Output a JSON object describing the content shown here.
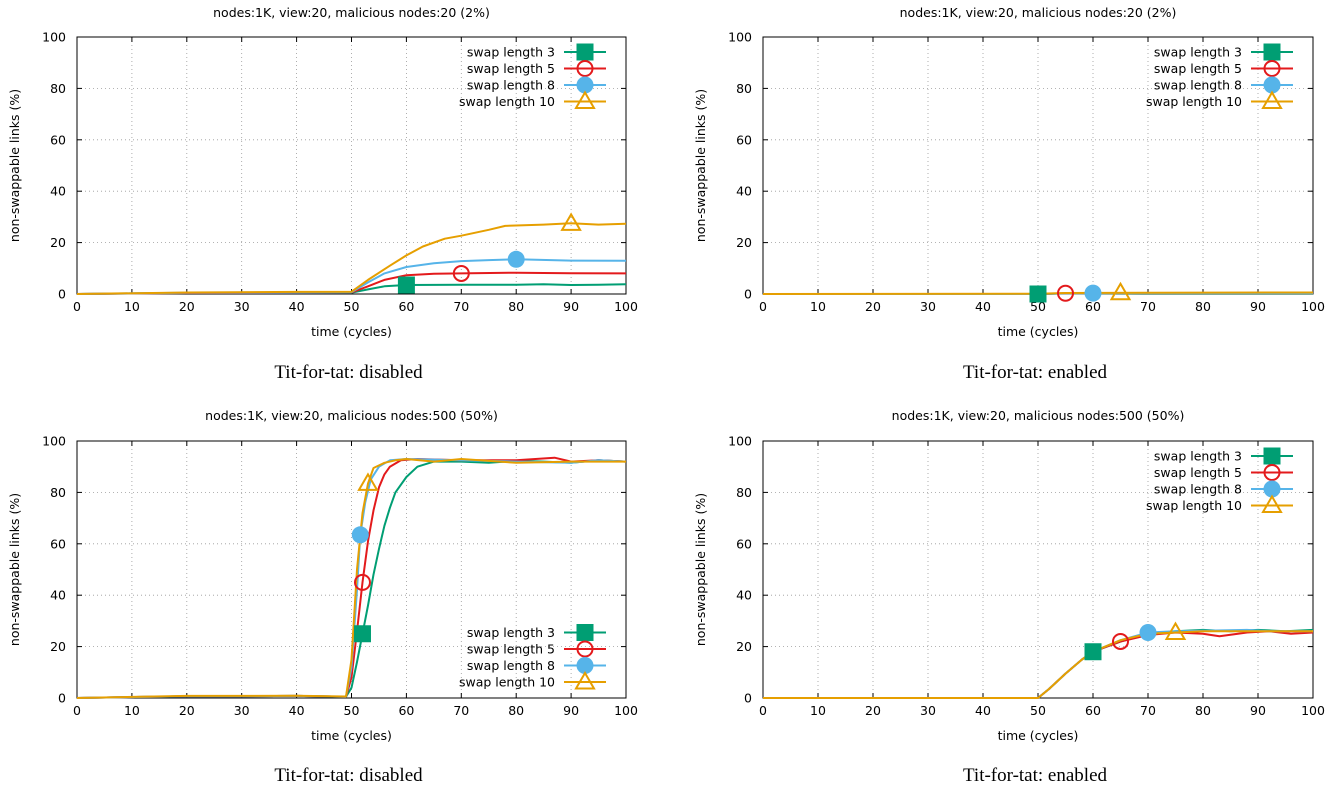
{
  "colors": {
    "swap3": "#009e73",
    "swap5": "#e31a1c",
    "swap8": "#56b4e9",
    "swap10": "#e69f00"
  },
  "chart_data": [
    {
      "type": "line",
      "title": "nodes:1K, view:20, malicious nodes:20 (2%)",
      "caption": "Tit-for-tat: disabled",
      "xlabel": "time (cycles)",
      "ylabel": "non-swappable links (%)",
      "xlim": [
        0,
        100
      ],
      "ylim": [
        0,
        100
      ],
      "xticks": [
        "0",
        "10",
        "20",
        "30",
        "40",
        "50",
        "60",
        "70",
        "80",
        "90",
        "100"
      ],
      "yticks": [
        "0",
        "20",
        "40",
        "60",
        "80",
        "100"
      ],
      "grid": true,
      "legend_position": "top-right",
      "series": [
        {
          "name": "swap length 3",
          "color_key": "swap3",
          "marker": "square",
          "marker_x": 60,
          "points": [
            [
              0,
              0
            ],
            [
              20,
              0.4
            ],
            [
              40,
              0.5
            ],
            [
              50,
              0.5
            ],
            [
              53,
              1.8
            ],
            [
              56,
              3.0
            ],
            [
              60,
              3.5
            ],
            [
              70,
              3.6
            ],
            [
              80,
              3.6
            ],
            [
              85,
              3.8
            ],
            [
              90,
              3.5
            ],
            [
              95,
              3.6
            ],
            [
              100,
              3.8
            ]
          ]
        },
        {
          "name": "swap length 5",
          "color_key": "swap5",
          "marker": "circle-open",
          "marker_x": 70,
          "points": [
            [
              0,
              0
            ],
            [
              20,
              0.4
            ],
            [
              40,
              0.5
            ],
            [
              50,
              0.6
            ],
            [
              53,
              3.0
            ],
            [
              56,
              5.5
            ],
            [
              60,
              7.3
            ],
            [
              65,
              7.9
            ],
            [
              70,
              8.0
            ],
            [
              80,
              8.3
            ],
            [
              90,
              8.1
            ],
            [
              100,
              8.0
            ]
          ]
        },
        {
          "name": "swap length 8",
          "color_key": "swap8",
          "marker": "circle-filled",
          "marker_x": 80,
          "points": [
            [
              0,
              0
            ],
            [
              20,
              0.5
            ],
            [
              40,
              0.6
            ],
            [
              50,
              0.7
            ],
            [
              53,
              4.5
            ],
            [
              56,
              8.0
            ],
            [
              60,
              10.5
            ],
            [
              65,
              12.0
            ],
            [
              70,
              12.8
            ],
            [
              75,
              13.2
            ],
            [
              80,
              13.5
            ],
            [
              90,
              13.0
            ],
            [
              100,
              12.9
            ]
          ]
        },
        {
          "name": "swap length 10",
          "color_key": "swap10",
          "marker": "triangle-open",
          "marker_x": 90,
          "points": [
            [
              0,
              0
            ],
            [
              20,
              0.6
            ],
            [
              40,
              0.8
            ],
            [
              50,
              0.9
            ],
            [
              53,
              5.5
            ],
            [
              57,
              11.0
            ],
            [
              60,
              15.0
            ],
            [
              63,
              18.5
            ],
            [
              67,
              21.5
            ],
            [
              70,
              22.7
            ],
            [
              75,
              25.0
            ],
            [
              78,
              26.5
            ],
            [
              85,
              27.0
            ],
            [
              90,
              27.5
            ],
            [
              95,
              27.0
            ],
            [
              100,
              27.3
            ]
          ]
        }
      ]
    },
    {
      "type": "line",
      "title": "nodes:1K, view:20, malicious nodes:20 (2%)",
      "caption": "Tit-for-tat: enabled",
      "xlabel": "time (cycles)",
      "ylabel": "non-swappable links (%)",
      "xlim": [
        0,
        100
      ],
      "ylim": [
        0,
        100
      ],
      "xticks": [
        "0",
        "10",
        "20",
        "30",
        "40",
        "50",
        "60",
        "70",
        "80",
        "90",
        "100"
      ],
      "yticks": [
        "0",
        "20",
        "40",
        "60",
        "80",
        "100"
      ],
      "grid": true,
      "legend_position": "top-right",
      "series": [
        {
          "name": "swap length 3",
          "color_key": "swap3",
          "marker": "square",
          "marker_x": 50,
          "points": [
            [
              0,
              0
            ],
            [
              50,
              0
            ],
            [
              55,
              0.2
            ],
            [
              70,
              0.3
            ],
            [
              100,
              0.3
            ]
          ]
        },
        {
          "name": "swap length 5",
          "color_key": "swap5",
          "marker": "circle-open",
          "marker_x": 55,
          "points": [
            [
              0,
              0
            ],
            [
              50,
              0
            ],
            [
              55,
              0.3
            ],
            [
              70,
              0.4
            ],
            [
              100,
              0.4
            ]
          ]
        },
        {
          "name": "swap length 8",
          "color_key": "swap8",
          "marker": "circle-filled",
          "marker_x": 60,
          "points": [
            [
              0,
              0
            ],
            [
              50,
              0
            ],
            [
              55,
              0.3
            ],
            [
              70,
              0.4
            ],
            [
              100,
              0.4
            ]
          ]
        },
        {
          "name": "swap length 10",
          "color_key": "swap10",
          "marker": "triangle-open",
          "marker_x": 65,
          "points": [
            [
              0,
              0
            ],
            [
              50,
              0.1
            ],
            [
              55,
              0.4
            ],
            [
              70,
              0.5
            ],
            [
              100,
              0.6
            ]
          ]
        }
      ]
    },
    {
      "type": "line",
      "title": "nodes:1K, view:20, malicious nodes:500 (50%)",
      "caption": "Tit-for-tat: disabled",
      "xlabel": "time (cycles)",
      "ylabel": "non-swappable links (%)",
      "xlim": [
        0,
        100
      ],
      "ylim": [
        0,
        100
      ],
      "xticks": [
        "0",
        "10",
        "20",
        "30",
        "40",
        "50",
        "60",
        "70",
        "80",
        "90",
        "100"
      ],
      "yticks": [
        "0",
        "20",
        "40",
        "60",
        "80",
        "100"
      ],
      "grid": true,
      "legend_position": "bottom-right",
      "series": [
        {
          "name": "swap length 3",
          "color_key": "swap3",
          "marker": "square",
          "marker_x": 52,
          "points": [
            [
              0,
              0
            ],
            [
              20,
              0.7
            ],
            [
              30,
              0.7
            ],
            [
              40,
              0.8
            ],
            [
              49,
              0.5
            ],
            [
              50,
              4.0
            ],
            [
              51,
              14.0
            ],
            [
              52,
              25.0
            ],
            [
              53,
              36.0
            ],
            [
              54,
              48.0
            ],
            [
              55,
              58.0
            ],
            [
              56,
              67.0
            ],
            [
              57,
              74.0
            ],
            [
              58,
              80.0
            ],
            [
              60,
              86.0
            ],
            [
              62,
              90.0
            ],
            [
              65,
              92.0
            ],
            [
              70,
              92.0
            ],
            [
              75,
              91.5
            ],
            [
              80,
              92.3
            ],
            [
              85,
              92.0
            ],
            [
              90,
              91.5
            ],
            [
              95,
              92.5
            ],
            [
              100,
              92.0
            ]
          ]
        },
        {
          "name": "swap length 5",
          "color_key": "swap5",
          "marker": "circle-open",
          "marker_x": 52,
          "points": [
            [
              0,
              0
            ],
            [
              20,
              0.7
            ],
            [
              30,
              0.7
            ],
            [
              40,
              0.8
            ],
            [
              49,
              0.5
            ],
            [
              50,
              8.0
            ],
            [
              51,
              26.0
            ],
            [
              52,
              45.0
            ],
            [
              53,
              61.0
            ],
            [
              54,
              73.0
            ],
            [
              55,
              82.0
            ],
            [
              56,
              87.0
            ],
            [
              57,
              90.0
            ],
            [
              59,
              92.5
            ],
            [
              62,
              93.0
            ],
            [
              70,
              92.5
            ],
            [
              80,
              92.5
            ],
            [
              87,
              93.5
            ],
            [
              90,
              92.0
            ],
            [
              95,
              92.5
            ],
            [
              100,
              92.0
            ]
          ]
        },
        {
          "name": "swap length 8",
          "color_key": "swap8",
          "marker": "circle-filled",
          "marker_x": 51.6,
          "points": [
            [
              0,
              0
            ],
            [
              20,
              0.7
            ],
            [
              30,
              0.7
            ],
            [
              40,
              0.8
            ],
            [
              49,
              0.5
            ],
            [
              50,
              12.0
            ],
            [
              51,
              42.0
            ],
            [
              51.6,
              63.5
            ],
            [
              52.5,
              76.0
            ],
            [
              53.5,
              85.0
            ],
            [
              55,
              90.0
            ],
            [
              57,
              92.5
            ],
            [
              60,
              93.0
            ],
            [
              70,
              92.5
            ],
            [
              80,
              92.0
            ],
            [
              90,
              91.5
            ],
            [
              95,
              92.5
            ],
            [
              100,
              92.0
            ]
          ]
        },
        {
          "name": "swap length 10",
          "color_key": "swap10",
          "marker": "triangle-open",
          "marker_x": 53,
          "points": [
            [
              0,
              0
            ],
            [
              20,
              0.8
            ],
            [
              30,
              0.8
            ],
            [
              40,
              0.9
            ],
            [
              49,
              0.6
            ],
            [
              50,
              15.0
            ],
            [
              51,
              50.0
            ],
            [
              52,
              72.0
            ],
            [
              53,
              83.5
            ],
            [
              54,
              89.5
            ],
            [
              56,
              91.5
            ],
            [
              58,
              92.5
            ],
            [
              60,
              93.0
            ],
            [
              65,
              92.0
            ],
            [
              70,
              93.0
            ],
            [
              80,
              91.5
            ],
            [
              90,
              92.0
            ],
            [
              100,
              92.0
            ]
          ]
        }
      ]
    },
    {
      "type": "line",
      "title": "nodes:1K, view:20, malicious nodes:500 (50%)",
      "caption": "Tit-for-tat: enabled",
      "xlabel": "time (cycles)",
      "ylabel": "non-swappable links (%)",
      "xlim": [
        0,
        100
      ],
      "ylim": [
        0,
        100
      ],
      "xticks": [
        "0",
        "10",
        "20",
        "30",
        "40",
        "50",
        "60",
        "70",
        "80",
        "90",
        "100"
      ],
      "yticks": [
        "0",
        "20",
        "40",
        "60",
        "80",
        "100"
      ],
      "grid": true,
      "legend_position": "top-right",
      "series": [
        {
          "name": "swap length 3",
          "color_key": "swap3",
          "marker": "square",
          "marker_x": 60,
          "points": [
            [
              0,
              0
            ],
            [
              50,
              0
            ],
            [
              52,
              3.5
            ],
            [
              55,
              9.5
            ],
            [
              58,
              15.0
            ],
            [
              60,
              18.0
            ],
            [
              65,
              22.0
            ],
            [
              70,
              25.0
            ],
            [
              75,
              26.0
            ],
            [
              80,
              26.5
            ],
            [
              85,
              26.0
            ],
            [
              90,
              26.5
            ],
            [
              95,
              26.0
            ],
            [
              100,
              26.5
            ]
          ]
        },
        {
          "name": "swap length 5",
          "color_key": "swap5",
          "marker": "circle-open",
          "marker_x": 65,
          "points": [
            [
              0,
              0
            ],
            [
              50,
              0
            ],
            [
              52,
              3.5
            ],
            [
              55,
              9.5
            ],
            [
              58,
              15.0
            ],
            [
              60,
              18.0
            ],
            [
              65,
              22.0
            ],
            [
              70,
              24.5
            ],
            [
              75,
              25.5
            ],
            [
              80,
              25.0
            ],
            [
              83,
              24.0
            ],
            [
              88,
              25.5
            ],
            [
              92,
              26.0
            ],
            [
              96,
              25.0
            ],
            [
              100,
              25.5
            ]
          ]
        },
        {
          "name": "swap length 8",
          "color_key": "swap8",
          "marker": "circle-filled",
          "marker_x": 70,
          "points": [
            [
              0,
              0
            ],
            [
              50,
              0
            ],
            [
              52,
              3.5
            ],
            [
              55,
              9.5
            ],
            [
              58,
              15.0
            ],
            [
              60,
              18.0
            ],
            [
              65,
              22.5
            ],
            [
              70,
              25.5
            ],
            [
              75,
              26.0
            ],
            [
              80,
              26.2
            ],
            [
              88,
              26.5
            ],
            [
              92,
              26.0
            ],
            [
              100,
              26.0
            ]
          ]
        },
        {
          "name": "swap length 10",
          "color_key": "swap10",
          "marker": "triangle-open",
          "marker_x": 75,
          "points": [
            [
              0,
              0
            ],
            [
              50,
              0
            ],
            [
              52,
              3.5
            ],
            [
              55,
              9.5
            ],
            [
              58,
              15.0
            ],
            [
              60,
              18.0
            ],
            [
              65,
              22.5
            ],
            [
              70,
              25.0
            ],
            [
              75,
              25.5
            ],
            [
              80,
              26.0
            ],
            [
              90,
              26.0
            ],
            [
              100,
              26.0
            ]
          ]
        }
      ]
    }
  ]
}
